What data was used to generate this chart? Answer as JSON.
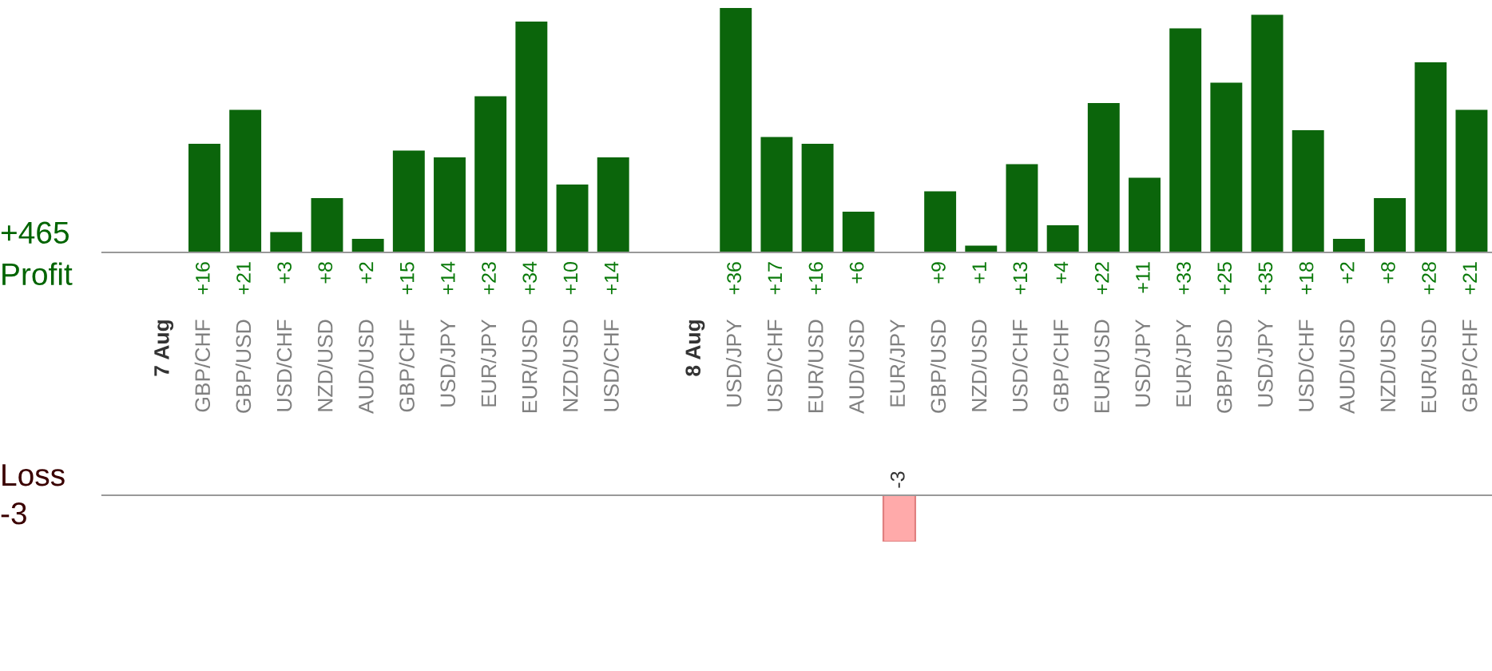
{
  "chart_data": [
    {
      "type": "bar",
      "ylabel": "Profit",
      "annotations": [
        "+465"
      ],
      "color": "#0b650b",
      "tick_labels": "x",
      "categories": [
        "7 Aug",
        "GBP/CHF",
        "GBP/USD",
        "USD/CHF",
        "NZD/USD",
        "AUD/USD",
        "GBP/CHF",
        "USD/JPY",
        "EUR/JPY",
        "EUR/USD",
        "NZD/USD",
        "USD/CHF",
        null,
        "8 Aug",
        "USD/JPY",
        "USD/CHF",
        "EUR/USD",
        "AUD/USD",
        "EUR/JPY",
        "GBP/USD",
        "NZD/USD",
        "USD/CHF",
        "GBP/CHF",
        "EUR/USD",
        "USD/JPY",
        "EUR/JPY",
        "GBP/USD",
        "USD/JPY",
        "USD/CHF",
        "AUD/USD",
        "NZD/USD",
        "EUR/USD",
        "GBP/CHF"
      ],
      "values": [
        null,
        16,
        21,
        3,
        8,
        2,
        15,
        14,
        23,
        34,
        10,
        14,
        null,
        null,
        36,
        17,
        16,
        6,
        null,
        9,
        1,
        13,
        4,
        22,
        11,
        33,
        25,
        35,
        18,
        2,
        8,
        28,
        21
      ],
      "value_labels": [
        null,
        "+16",
        "+21",
        "+3",
        "+8",
        "+2",
        "+15",
        "+14",
        "+23",
        "+34",
        "+10",
        "+14",
        null,
        null,
        "+36",
        "+17",
        "+16",
        "+6",
        null,
        "+9",
        "+1",
        "+13",
        "+4",
        "+22",
        "+11",
        "+33",
        "+25",
        "+35",
        "+18",
        "+2",
        "+8",
        "+28",
        "+21"
      ]
    },
    {
      "type": "bar",
      "ylabel": "Loss",
      "annotations": [
        "-3"
      ],
      "color": "#ffaaaa",
      "tick_labels": false,
      "categories": [
        null,
        null,
        null,
        null,
        null,
        null,
        null,
        null,
        null,
        null,
        null,
        null,
        null,
        null,
        null,
        null,
        null,
        null,
        null,
        null,
        null,
        null,
        null,
        null,
        null,
        null,
        null,
        null,
        null,
        null,
        null,
        null,
        null
      ],
      "values": [
        null,
        null,
        null,
        null,
        null,
        null,
        null,
        null,
        null,
        null,
        null,
        null,
        null,
        null,
        null,
        null,
        null,
        null,
        -3,
        null,
        null,
        null,
        null,
        null,
        null,
        null,
        null,
        null,
        null,
        null,
        null,
        null,
        null
      ],
      "value_labels": [
        null,
        null,
        null,
        null,
        null,
        null,
        null,
        null,
        null,
        null,
        null,
        null,
        null,
        null,
        null,
        null,
        null,
        null,
        "-3",
        null,
        null,
        null,
        null,
        null,
        null,
        null,
        null,
        null,
        null,
        null,
        null,
        null,
        null
      ]
    }
  ]
}
